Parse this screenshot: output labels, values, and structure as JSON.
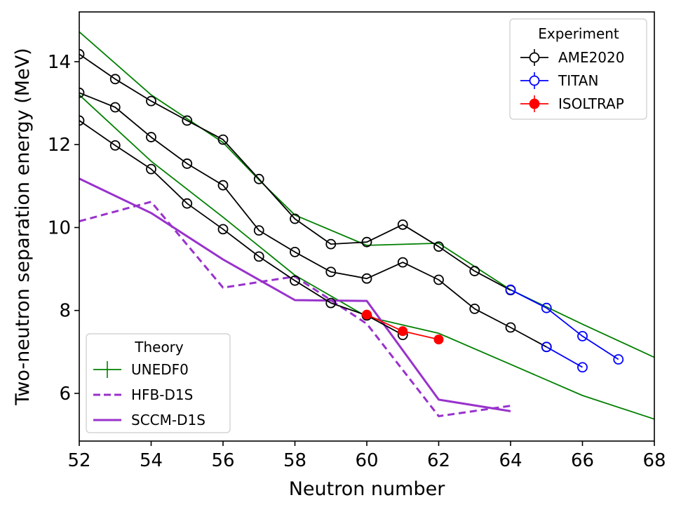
{
  "chart_data": {
    "type": "line",
    "title": "",
    "xlabel": "Neutron number",
    "ylabel": "Two-neutron separation energy (MeV)",
    "xlim": [
      52,
      68
    ],
    "ylim": [
      4.85,
      15.2
    ],
    "xticks": [
      52,
      54,
      56,
      58,
      60,
      62,
      64,
      66,
      68
    ],
    "yticks": [
      6,
      8,
      10,
      12,
      14
    ],
    "grid": false,
    "legends": [
      {
        "title": "Experiment",
        "placement": "top-right",
        "entries": [
          {
            "label": "AME2020",
            "color": "#000000",
            "style": "open-circle"
          },
          {
            "label": "TITAN",
            "color": "#0000ff",
            "style": "open-circle"
          },
          {
            "label": "ISOLTRAP",
            "color": "#ff0000",
            "style": "filled-circle"
          }
        ]
      },
      {
        "title": "Theory",
        "placement": "bottom-left",
        "entries": [
          {
            "label": "UNEDF0",
            "color": "#008000",
            "style": "solid-thin"
          },
          {
            "label": "HFB-D1S",
            "color": "#9932cc",
            "style": "dashed"
          },
          {
            "label": "SCCM-D1S",
            "color": "#9932cc",
            "style": "solid-thick"
          }
        ]
      }
    ],
    "series": [
      {
        "name": "UNEDF0 A",
        "legend": "UNEDF0",
        "color": "#008000",
        "width": 1.8,
        "dash": "",
        "marker": "none",
        "x": [
          52,
          54,
          56,
          57,
          58,
          60,
          62,
          64,
          66,
          68
        ],
        "y": [
          14.72,
          13.2,
          12.05,
          11.15,
          10.3,
          9.57,
          9.62,
          8.5,
          7.67,
          6.87
        ]
      },
      {
        "name": "UNEDF0 B",
        "legend": "UNEDF0",
        "color": "#008000",
        "width": 1.8,
        "dash": "",
        "marker": "none",
        "x": [
          52,
          54,
          56,
          58,
          60,
          62,
          64,
          66,
          68
        ],
        "y": [
          13.2,
          11.6,
          10.25,
          8.85,
          7.85,
          7.45,
          6.7,
          5.95,
          5.38
        ]
      },
      {
        "name": "HFB-D1S",
        "legend": "HFB-D1S",
        "color": "#9932cc",
        "width": 3,
        "dash": "10 6",
        "marker": "none",
        "x": [
          52,
          54,
          56,
          58,
          60,
          62,
          64
        ],
        "y": [
          10.15,
          10.62,
          8.55,
          8.82,
          7.68,
          5.45,
          5.7
        ]
      },
      {
        "name": "SCCM-D1S",
        "legend": "SCCM-D1S",
        "color": "#9932cc",
        "width": 3,
        "dash": "",
        "marker": "none",
        "x": [
          52,
          54,
          56,
          58,
          60,
          62,
          64
        ],
        "y": [
          11.18,
          10.35,
          9.23,
          8.25,
          8.23,
          5.85,
          5.57
        ]
      },
      {
        "name": "AME2020 A",
        "legend": "AME2020",
        "color": "#000000",
        "width": 1.8,
        "dash": "",
        "marker": "open",
        "x": [
          52,
          53,
          54,
          55,
          56,
          57,
          58,
          59,
          60,
          61,
          62,
          63,
          64
        ],
        "y": [
          14.18,
          13.58,
          13.05,
          12.58,
          12.12,
          11.17,
          10.21,
          9.6,
          9.65,
          10.07,
          9.54,
          8.95,
          8.49
        ]
      },
      {
        "name": "AME2020 B",
        "legend": "AME2020",
        "color": "#000000",
        "width": 1.8,
        "dash": "",
        "marker": "open",
        "x": [
          52,
          53,
          54,
          55,
          56,
          57,
          58,
          59,
          60,
          61,
          62,
          63,
          64,
          65
        ],
        "y": [
          13.25,
          12.9,
          12.18,
          11.54,
          11.02,
          9.93,
          9.41,
          8.93,
          8.77,
          9.16,
          8.74,
          8.04,
          7.59,
          7.12
        ]
      },
      {
        "name": "AME2020 C",
        "legend": "AME2020",
        "color": "#000000",
        "width": 1.8,
        "dash": "",
        "marker": "open",
        "x": [
          52,
          53,
          54,
          55,
          56,
          57,
          58,
          59,
          60,
          61
        ],
        "y": [
          12.58,
          11.98,
          11.41,
          10.58,
          9.96,
          9.3,
          8.72,
          8.18,
          7.88,
          7.41
        ]
      },
      {
        "name": "TITAN A",
        "legend": "TITAN",
        "color": "#0000ff",
        "width": 1.8,
        "dash": "",
        "marker": "open",
        "x": [
          64,
          65,
          66,
          67
        ],
        "y": [
          8.5,
          8.06,
          7.38,
          6.82
        ]
      },
      {
        "name": "TITAN B",
        "legend": "TITAN",
        "color": "#0000ff",
        "width": 1.8,
        "dash": "",
        "marker": "open",
        "x": [
          65,
          66
        ],
        "y": [
          7.12,
          6.63
        ]
      },
      {
        "name": "ISOLTRAP",
        "legend": "ISOLTRAP",
        "color": "#ff0000",
        "width": 1.8,
        "dash": "",
        "marker": "filled",
        "x": [
          60,
          61,
          62
        ],
        "y": [
          7.9,
          7.5,
          7.3
        ]
      }
    ]
  }
}
